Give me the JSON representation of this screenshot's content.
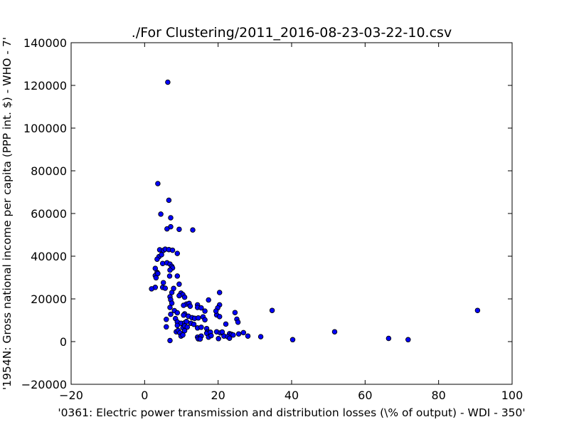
{
  "chart_data": {
    "type": "scatter",
    "title": "./For Clustering/2011_2016-08-23-03-22-10.csv",
    "xlabel": "'0361: Electric power transmission and distribution losses  (\\% of output) - WDI - 350'",
    "ylabel": "'1954N: Gross national income per capita (PPP int. $) - WHO - 7'",
    "xlim": [
      -20,
      100
    ],
    "ylim": [
      -20000,
      140000
    ],
    "xticks": [
      "−20",
      "0",
      "20",
      "40",
      "60",
      "80",
      "100"
    ],
    "xtick_values": [
      -20,
      0,
      20,
      40,
      60,
      80,
      100
    ],
    "yticks": [
      "−20000",
      "0",
      "20000",
      "40000",
      "60000",
      "80000",
      "100000",
      "120000",
      "140000"
    ],
    "ytick_values": [
      -20000,
      0,
      20000,
      40000,
      60000,
      80000,
      100000,
      120000,
      140000
    ],
    "grid": false,
    "marker_color": "#0000ff",
    "points": [
      [
        6.3,
        121500
      ],
      [
        3.6,
        74000
      ],
      [
        6.6,
        66200
      ],
      [
        4.4,
        59700
      ],
      [
        7.1,
        58000
      ],
      [
        7.1,
        53800
      ],
      [
        6.1,
        52800
      ],
      [
        9.4,
        52600
      ],
      [
        13.1,
        52300
      ],
      [
        4.1,
        43000
      ],
      [
        5.1,
        42700
      ],
      [
        5.6,
        43300
      ],
      [
        6.6,
        43100
      ],
      [
        7.6,
        42800
      ],
      [
        8.9,
        41300
      ],
      [
        3.9,
        39800
      ],
      [
        4.6,
        40700
      ],
      [
        3.4,
        38600
      ],
      [
        4.9,
        36600
      ],
      [
        6.1,
        36900
      ],
      [
        6.9,
        36300
      ],
      [
        7.4,
        35200
      ],
      [
        7.6,
        34500
      ],
      [
        6.9,
        33500
      ],
      [
        2.9,
        34300
      ],
      [
        3.4,
        32400
      ],
      [
        2.9,
        30900
      ],
      [
        3.6,
        31900
      ],
      [
        3.1,
        29900
      ],
      [
        6.8,
        30700
      ],
      [
        8.9,
        30700
      ],
      [
        5.1,
        27600
      ],
      [
        4.9,
        25400
      ],
      [
        2.9,
        25400
      ],
      [
        1.9,
        24700
      ],
      [
        5.6,
        25000
      ],
      [
        7.9,
        24900
      ],
      [
        7.4,
        23000
      ],
      [
        9.4,
        26900
      ],
      [
        9.9,
        22700
      ],
      [
        20.4,
        23000
      ],
      [
        10.4,
        22000
      ],
      [
        9.4,
        21500
      ],
      [
        10.9,
        20800
      ],
      [
        6.9,
        21000
      ],
      [
        7.1,
        19600
      ],
      [
        7.4,
        18000
      ],
      [
        11.4,
        17600
      ],
      [
        12.1,
        17900
      ],
      [
        10.6,
        17000
      ],
      [
        12.4,
        16600
      ],
      [
        14.4,
        17200
      ],
      [
        14.4,
        16000
      ],
      [
        15.4,
        15800
      ],
      [
        17.4,
        19500
      ],
      [
        20.4,
        17200
      ],
      [
        6.9,
        16000
      ],
      [
        8.1,
        14500
      ],
      [
        8.9,
        13500
      ],
      [
        10.9,
        13000
      ],
      [
        16.4,
        14300
      ],
      [
        24.6,
        13600
      ],
      [
        34.7,
        14600
      ],
      [
        90.6,
        14600
      ],
      [
        7.1,
        12800
      ],
      [
        10.6,
        12400
      ],
      [
        11.9,
        11900
      ],
      [
        12.9,
        11200
      ],
      [
        13.6,
        10900
      ],
      [
        14.6,
        11100
      ],
      [
        15.9,
        11600
      ],
      [
        16.4,
        10200
      ],
      [
        19.6,
        12500
      ],
      [
        20.4,
        11700
      ],
      [
        19.9,
        15800
      ],
      [
        19.4,
        14300
      ],
      [
        25.1,
        10500
      ],
      [
        25.4,
        9100
      ],
      [
        5.9,
        10400
      ],
      [
        8.4,
        10800
      ],
      [
        8.9,
        9200
      ],
      [
        9.9,
        8600
      ],
      [
        10.9,
        8800
      ],
      [
        11.4,
        9400
      ],
      [
        12.6,
        8600
      ],
      [
        13.4,
        8100
      ],
      [
        22.1,
        8200
      ],
      [
        5.9,
        6900
      ],
      [
        8.9,
        7600
      ],
      [
        10.4,
        6500
      ],
      [
        10.9,
        7400
      ],
      [
        11.6,
        6800
      ],
      [
        14.4,
        6400
      ],
      [
        15.4,
        6700
      ],
      [
        16.9,
        6100
      ],
      [
        10.9,
        5100
      ],
      [
        8.6,
        4600
      ],
      [
        9.1,
        5200
      ],
      [
        9.6,
        4100
      ],
      [
        17.1,
        4600
      ],
      [
        16.9,
        3900
      ],
      [
        17.9,
        4400
      ],
      [
        19.6,
        4600
      ],
      [
        20.6,
        4100
      ],
      [
        21.1,
        4500
      ],
      [
        23.1,
        3700
      ],
      [
        23.6,
        3400
      ],
      [
        24.1,
        3100
      ],
      [
        25.6,
        3600
      ],
      [
        26.9,
        4200
      ],
      [
        51.7,
        4600
      ],
      [
        9.9,
        2600
      ],
      [
        10.4,
        3100
      ],
      [
        14.4,
        2100
      ],
      [
        15.4,
        2600
      ],
      [
        17.4,
        2100
      ],
      [
        18.1,
        2800
      ],
      [
        21.6,
        2600
      ],
      [
        22.6,
        2300
      ],
      [
        23.1,
        1600
      ],
      [
        28.1,
        2600
      ],
      [
        31.6,
        2300
      ],
      [
        14.6,
        1300
      ],
      [
        15.1,
        1200
      ],
      [
        20.1,
        1400
      ],
      [
        40.3,
        900
      ],
      [
        66.4,
        1500
      ],
      [
        71.7,
        900
      ],
      [
        6.9,
        500
      ]
    ]
  }
}
